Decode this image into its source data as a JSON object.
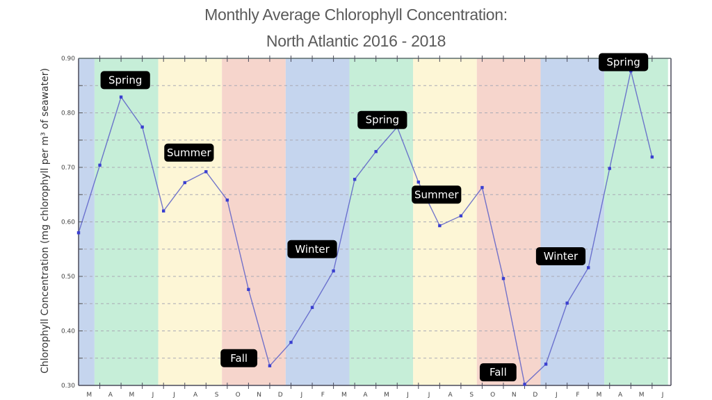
{
  "chart_data": {
    "type": "line",
    "title": "Monthly Average Chlorophyll Concentration:",
    "subtitle": "North Atlantic 2016 - 2018",
    "xlabel": "",
    "ylabel": "Chlorophyll Concentration (mg chlorophyll per m³ of seawater)",
    "ylim": [
      0.3,
      0.9
    ],
    "yticks": [
      "0.30",
      "0.40",
      "0.50",
      "0.60",
      "0.70",
      "0.80",
      "0.90"
    ],
    "ytick_values": [
      0.3,
      0.4,
      0.5,
      0.6,
      0.7,
      0.8,
      0.9
    ],
    "grid": "horizontal dashed",
    "x_tick_labels": [
      "M",
      "A",
      "M",
      "J",
      "J",
      "A",
      "S",
      "O",
      "N",
      "D",
      "J",
      "F",
      "M",
      "A",
      "M",
      "J",
      "J",
      "A",
      "S",
      "O",
      "N",
      "D",
      "J",
      "F",
      "M",
      "A",
      "M",
      "J"
    ],
    "series": [
      {
        "name": "Chlorophyll concentration",
        "color": "#3a3fd0",
        "values": [
          0.58,
          0.704,
          0.829,
          0.774,
          0.62,
          0.672,
          0.692,
          0.64,
          0.476,
          0.336,
          0.379,
          0.443,
          0.51,
          0.678,
          0.729,
          0.774,
          0.673,
          0.593,
          0.611,
          0.663,
          0.496,
          0.302,
          0.339,
          0.451,
          0.516,
          0.698,
          0.877,
          0.719
        ]
      }
    ],
    "season_bands": [
      {
        "season": "Winter",
        "start": 0,
        "end": 0.75,
        "color": "#c5d5ee"
      },
      {
        "season": "Spring",
        "start": 0.75,
        "end": 3.75,
        "color": "#c6eed8"
      },
      {
        "season": "Summer",
        "start": 3.75,
        "end": 6.75,
        "color": "#fdf6d6"
      },
      {
        "season": "Fall",
        "start": 6.75,
        "end": 9.75,
        "color": "#f6d5cc"
      },
      {
        "season": "Winter",
        "start": 9.75,
        "end": 12.75,
        "color": "#c5d5ee"
      },
      {
        "season": "Spring",
        "start": 12.75,
        "end": 15.75,
        "color": "#c6eed8"
      },
      {
        "season": "Summer",
        "start": 15.75,
        "end": 18.75,
        "color": "#fdf6d6"
      },
      {
        "season": "Fall",
        "start": 18.75,
        "end": 21.75,
        "color": "#f6d5cc"
      },
      {
        "season": "Winter",
        "start": 21.75,
        "end": 24.75,
        "color": "#c5d5ee"
      },
      {
        "season": "Spring",
        "start": 24.75,
        "end": 27.75,
        "color": "#c6eed8"
      }
    ],
    "annotations": [
      {
        "text": "Spring",
        "x": 2.2,
        "y": 0.86
      },
      {
        "text": "Summer",
        "x": 5.2,
        "y": 0.727
      },
      {
        "text": "Fall",
        "x": 7.55,
        "y": 0.35
      },
      {
        "text": "Winter",
        "x": 11.0,
        "y": 0.55
      },
      {
        "text": "Spring",
        "x": 14.3,
        "y": 0.787
      },
      {
        "text": "Summer",
        "x": 16.85,
        "y": 0.65
      },
      {
        "text": "Fall",
        "x": 19.75,
        "y": 0.324
      },
      {
        "text": "Winter",
        "x": 22.7,
        "y": 0.537
      },
      {
        "text": "Spring",
        "x": 25.65,
        "y": 0.893
      }
    ]
  }
}
